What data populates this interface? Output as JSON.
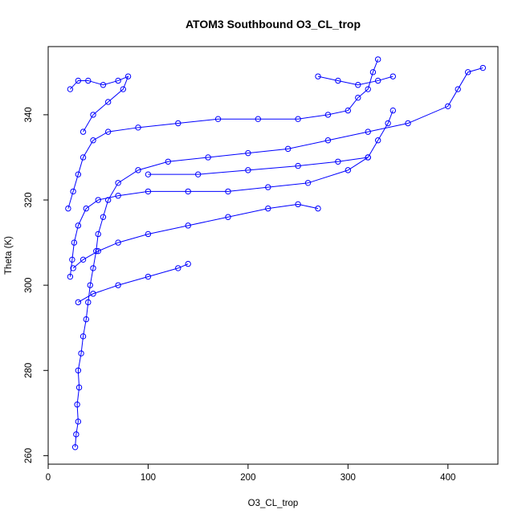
{
  "chart_data": {
    "type": "scatter",
    "title": "ATOM3 Southbound O3_CL_trop",
    "xlabel": "O3_CL_trop",
    "ylabel": "Theta (K)",
    "xlim": [
      0,
      450
    ],
    "ylim": [
      258,
      356
    ],
    "xticks": [
      0,
      100,
      200,
      300,
      400
    ],
    "yticks": [
      260,
      280,
      300,
      320,
      340
    ],
    "grid": false,
    "legend": "none",
    "marker": "open-circle",
    "connect_points": true,
    "color": "#0000ff",
    "series": [
      {
        "values": [
          [
            27,
            262
          ],
          [
            28,
            265
          ],
          [
            30,
            268
          ],
          [
            29,
            272
          ],
          [
            31,
            276
          ],
          [
            30,
            280
          ],
          [
            33,
            284
          ],
          [
            35,
            288
          ],
          [
            38,
            292
          ],
          [
            40,
            296
          ],
          [
            42,
            300
          ],
          [
            45,
            304
          ],
          [
            48,
            308
          ],
          [
            50,
            312
          ],
          [
            55,
            316
          ],
          [
            60,
            320
          ],
          [
            70,
            324
          ],
          [
            90,
            327
          ],
          [
            120,
            329
          ],
          [
            160,
            330
          ],
          [
            200,
            331
          ],
          [
            240,
            332
          ],
          [
            280,
            334
          ],
          [
            320,
            336
          ],
          [
            360,
            338
          ],
          [
            400,
            342
          ],
          [
            410,
            346
          ],
          [
            420,
            350
          ],
          [
            435,
            351
          ]
        ]
      },
      {
        "values": [
          [
            22,
            302
          ],
          [
            24,
            306
          ],
          [
            26,
            310
          ],
          [
            30,
            314
          ],
          [
            38,
            318
          ],
          [
            50,
            320
          ],
          [
            70,
            321
          ],
          [
            100,
            322
          ],
          [
            140,
            322
          ],
          [
            180,
            322
          ],
          [
            220,
            323
          ],
          [
            260,
            324
          ],
          [
            300,
            327
          ],
          [
            320,
            330
          ],
          [
            330,
            334
          ],
          [
            340,
            338
          ],
          [
            345,
            341
          ]
        ]
      },
      {
        "values": [
          [
            20,
            318
          ],
          [
            25,
            322
          ],
          [
            30,
            326
          ],
          [
            35,
            330
          ],
          [
            45,
            334
          ],
          [
            60,
            336
          ],
          [
            90,
            337
          ],
          [
            130,
            338
          ],
          [
            170,
            339
          ],
          [
            210,
            339
          ],
          [
            250,
            339
          ],
          [
            280,
            340
          ],
          [
            300,
            341
          ],
          [
            310,
            344
          ],
          [
            320,
            346
          ],
          [
            325,
            350
          ],
          [
            330,
            353
          ]
        ]
      },
      {
        "values": [
          [
            25,
            304
          ],
          [
            35,
            306
          ],
          [
            50,
            308
          ],
          [
            70,
            310
          ],
          [
            100,
            312
          ],
          [
            140,
            314
          ],
          [
            180,
            316
          ],
          [
            220,
            318
          ],
          [
            250,
            319
          ],
          [
            270,
            318
          ]
        ]
      },
      {
        "values": [
          [
            22,
            346
          ],
          [
            30,
            348
          ],
          [
            40,
            348
          ],
          [
            55,
            347
          ],
          [
            70,
            348
          ],
          [
            80,
            349
          ],
          [
            75,
            346
          ],
          [
            60,
            343
          ],
          [
            45,
            340
          ],
          [
            35,
            336
          ]
        ]
      },
      {
        "values": [
          [
            30,
            296
          ],
          [
            45,
            298
          ],
          [
            70,
            300
          ],
          [
            100,
            302
          ],
          [
            130,
            304
          ],
          [
            140,
            305
          ]
        ]
      },
      {
        "values": [
          [
            100,
            326
          ],
          [
            150,
            326
          ],
          [
            200,
            327
          ],
          [
            250,
            328
          ],
          [
            290,
            329
          ],
          [
            320,
            330
          ]
        ]
      },
      {
        "values": [
          [
            270,
            349
          ],
          [
            290,
            348
          ],
          [
            310,
            347
          ],
          [
            330,
            348
          ],
          [
            345,
            349
          ]
        ]
      }
    ]
  }
}
